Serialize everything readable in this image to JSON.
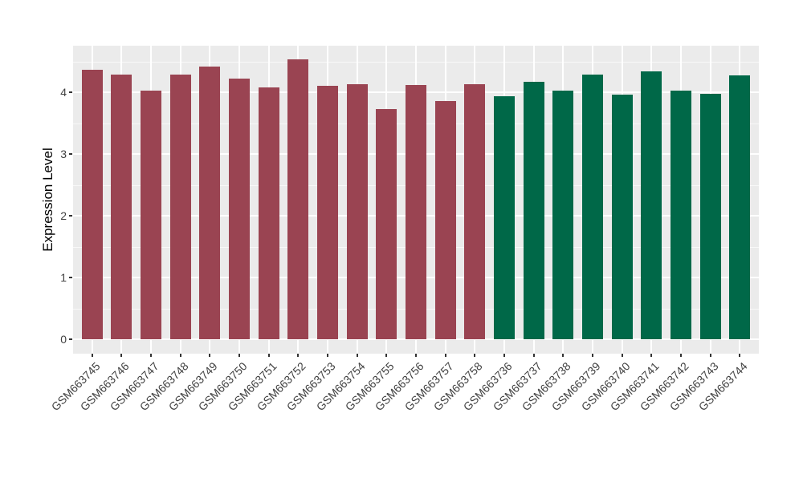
{
  "figure": {
    "background": "#FFFFFF",
    "panel_background": "#EBEBEB",
    "gridline_color": "#FFFFFF",
    "axis_text_color": "#404040",
    "axis_title_color": "#000000"
  },
  "chart_data": {
    "type": "bar",
    "title": "",
    "xlabel": "",
    "ylabel": "Expression Level",
    "ylim": [
      0,
      4.75
    ],
    "yticks": [
      "0",
      "1",
      "2",
      "3",
      "4"
    ],
    "grid": {
      "horizontal_major": [
        0,
        1,
        2,
        3,
        4
      ],
      "horizontal_minor": [
        0.5,
        1.5,
        2.5,
        3.5,
        4.5
      ],
      "vertical_major": "one white line at each category center"
    },
    "legend_position": "none",
    "groups": [
      {
        "id": "maroon",
        "color": "#9A4452"
      },
      {
        "id": "green",
        "color": "#006848"
      }
    ],
    "categories": [
      "GSM663745",
      "GSM663746",
      "GSM663747",
      "GSM663748",
      "GSM663749",
      "GSM663750",
      "GSM663751",
      "GSM663752",
      "GSM663753",
      "GSM663754",
      "GSM663755",
      "GSM663756",
      "GSM663757",
      "GSM663758",
      "GSM663736",
      "GSM663737",
      "GSM663738",
      "GSM663739",
      "GSM663740",
      "GSM663741",
      "GSM663742",
      "GSM663743",
      "GSM663744"
    ],
    "values": [
      4.36,
      4.29,
      4.02,
      4.28,
      4.42,
      4.22,
      4.08,
      4.53,
      4.1,
      4.13,
      3.73,
      4.12,
      3.86,
      4.13,
      3.94,
      4.17,
      4.02,
      4.29,
      3.96,
      4.34,
      4.03,
      3.97,
      4.27
    ],
    "bar_groups": [
      "maroon",
      "maroon",
      "maroon",
      "maroon",
      "maroon",
      "maroon",
      "maroon",
      "maroon",
      "maroon",
      "maroon",
      "maroon",
      "maroon",
      "maroon",
      "maroon",
      "green",
      "green",
      "green",
      "green",
      "green",
      "green",
      "green",
      "green",
      "green"
    ]
  }
}
